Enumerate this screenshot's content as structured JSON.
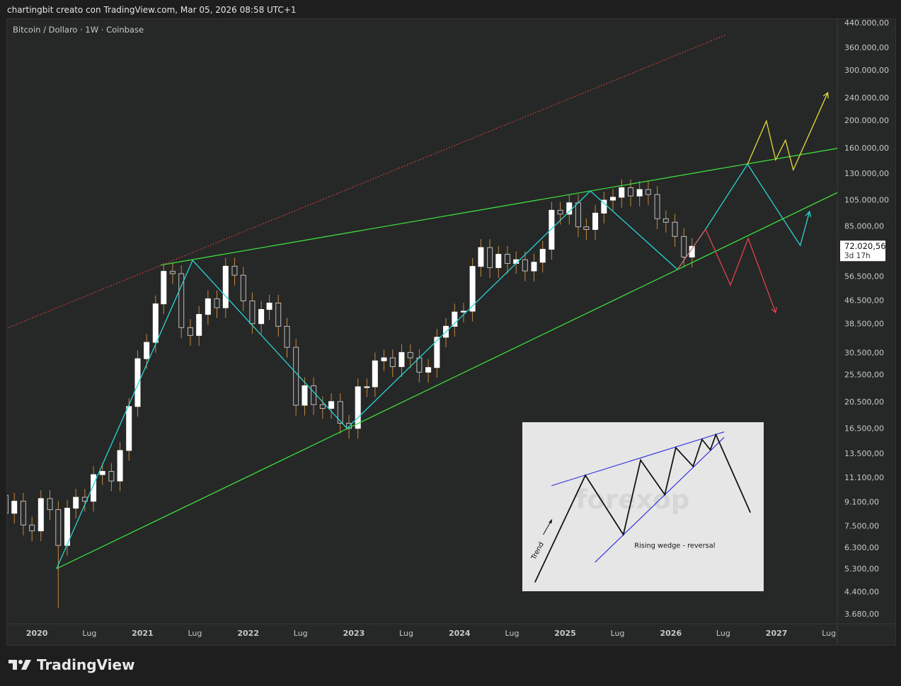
{
  "header": {
    "caption": "chartingbit creato con TradingView.com, Mar 05, 2026 08:58 UTC+1"
  },
  "symbol": {
    "title": "Bitcoin / Dollaro · 1W · Coinbase"
  },
  "footer": {
    "logo": "TradingView"
  },
  "colors": {
    "background": "#262727",
    "up": "#ffffff",
    "down": "#2a2a2a",
    "wick": "#c8873a",
    "trend_green": "#3ddc3d",
    "cyan": "#2ad4d4",
    "red": "#e0424a",
    "yellow": "#e5d93a",
    "pink": "#c9747c",
    "dotted_red": "#d9443c"
  },
  "chart_data": {
    "type": "candlestick",
    "title": "Bitcoin / Dollaro · 1W · Coinbase",
    "y_scale": "log",
    "ylim": [
      3395,
      452800
    ],
    "xlim": [
      "2019-09-20",
      "2027-07-30"
    ],
    "grid": false,
    "price_ticks": [
      "440.000,00",
      "360.000,00",
      "300.000,00",
      "240.000,00",
      "200.000,00",
      "160.000,00",
      "130.000,00",
      "105.000,00",
      "85.000,00",
      "56.500,00",
      "46.500,00",
      "38.500,00",
      "30.500,00",
      "25.500,00",
      "20.500,00",
      "16.500,00",
      "13.500,00",
      "11.100,00",
      "9.100,00",
      "7.500,00",
      "6.300,00",
      "5.300,00",
      "4.400,00",
      "3.680,00"
    ],
    "price_tick_values": [
      440000,
      360000,
      300000,
      240000,
      200000,
      160000,
      130000,
      105000,
      85000,
      56500,
      46500,
      38500,
      30500,
      25500,
      20500,
      16500,
      13500,
      11100,
      9100,
      7500,
      6300,
      5300,
      4400,
      3680
    ],
    "time_ticks": [
      {
        "label": "2020",
        "date": "2020-01-01"
      },
      {
        "label": "Lug",
        "date": "2020-07-01"
      },
      {
        "label": "2021",
        "date": "2021-01-01"
      },
      {
        "label": "Lug",
        "date": "2021-07-01"
      },
      {
        "label": "2022",
        "date": "2022-01-01"
      },
      {
        "label": "Lug",
        "date": "2022-07-01"
      },
      {
        "label": "2023",
        "date": "2023-01-01"
      },
      {
        "label": "Lug",
        "date": "2023-07-01"
      },
      {
        "label": "2024",
        "date": "2024-01-01"
      },
      {
        "label": "Lug",
        "date": "2024-07-01"
      },
      {
        "label": "2025",
        "date": "2025-01-01"
      },
      {
        "label": "Lug",
        "date": "2025-07-01"
      },
      {
        "label": "2026",
        "date": "2026-01-01"
      },
      {
        "label": "Lug",
        "date": "2026-07-01"
      },
      {
        "label": "2027",
        "date": "2027-01-01"
      },
      {
        "label": "Lug",
        "date": "2027-07-01"
      }
    ],
    "last_price": {
      "value": 72020.56,
      "label": "72.020,56",
      "countdown": "3d 17h"
    },
    "candles_start": "2019-09-01",
    "candles_period": "month",
    "first_open": 9600,
    "closes": [
      8300,
      9150,
      7550,
      7200,
      9350,
      8550,
      6400,
      8650,
      9450,
      9150,
      11350,
      11650,
      10780,
      13800,
      19700,
      29000,
      33100,
      45200,
      58800,
      57700,
      37300,
      35000,
      41500,
      47100,
      43800,
      61300,
      57000,
      46300,
      38500,
      43200,
      45500,
      37700,
      31800,
      19900,
      23300,
      20000,
      19400,
      20500,
      17200,
      16500,
      23100,
      23100,
      28500,
      29200,
      27200,
      30500,
      29200,
      26000,
      27000,
      34500,
      37700,
      42300,
      42600,
      61200,
      71300,
      60600,
      67500,
      62700,
      64600,
      59000,
      63300,
      70300,
      96400,
      93400,
      102400,
      84300,
      82500,
      94200,
      104600,
      107100,
      115700,
      108200,
      114000,
      109500,
      90000,
      87500,
      78000,
      66000,
      72020.56
    ],
    "lows_override": {
      "2020-03": 3850
    },
    "drawings": [
      {
        "name": "upper-trendline",
        "color": "trend_green",
        "style": "solid",
        "extend": "right",
        "points": [
          [
            "2021-03-03",
            61800
          ],
          [
            "2027-07-26",
            158800
          ]
        ]
      },
      {
        "name": "lower-trendline",
        "color": "trend_green",
        "style": "solid",
        "extend": "right",
        "points": [
          [
            "2020-03-09",
            5300
          ],
          [
            "2027-07-26",
            110700
          ]
        ]
      },
      {
        "name": "dotted-channel-line",
        "color": "dotted_red",
        "style": "dotted",
        "points": [
          [
            "2019-09-25",
            37300
          ],
          [
            "2026-07-11",
            399000
          ]
        ]
      },
      {
        "name": "cyan-zigzag",
        "color": "cyan",
        "style": "solid",
        "points": [
          [
            "2020-03-09",
            5300
          ],
          [
            "2021-06-23",
            64300
          ],
          [
            "2022-12-08",
            16500
          ],
          [
            "2025-03-29",
            112700
          ],
          [
            "2026-01-24",
            59700
          ]
        ]
      },
      {
        "name": "pink-segment",
        "color": "pink",
        "style": "solid",
        "points": [
          [
            "2026-01-24",
            59700
          ],
          [
            "2026-05-01",
            82700
          ]
        ]
      },
      {
        "name": "cyan-projection",
        "color": "cyan",
        "style": "solid",
        "arrow": true,
        "points": [
          [
            "2026-05-01",
            82700
          ],
          [
            "2026-09-23",
            140000
          ],
          [
            "2027-03-24",
            72500
          ],
          [
            "2027-04-25",
            95400
          ]
        ]
      },
      {
        "name": "red-projection",
        "color": "red",
        "style": "solid",
        "arrow": true,
        "points": [
          [
            "2026-05-01",
            82700
          ],
          [
            "2026-07-26",
            52600
          ],
          [
            "2026-09-25",
            76800
          ],
          [
            "2026-12-29",
            42100
          ]
        ]
      },
      {
        "name": "yellow-projection",
        "color": "yellow",
        "style": "solid",
        "arrow": true,
        "points": [
          [
            "2026-09-23",
            140000
          ],
          [
            "2026-11-27",
            198500
          ],
          [
            "2026-12-29",
            145000
          ],
          [
            "2027-02-01",
            170000
          ],
          [
            "2027-02-28",
            133700
          ],
          [
            "2027-06-27",
            249600
          ]
        ]
      }
    ]
  },
  "inset": {
    "label": "Rising wedge - reversal",
    "trend_label": "Trend",
    "watermark": "forexop"
  }
}
